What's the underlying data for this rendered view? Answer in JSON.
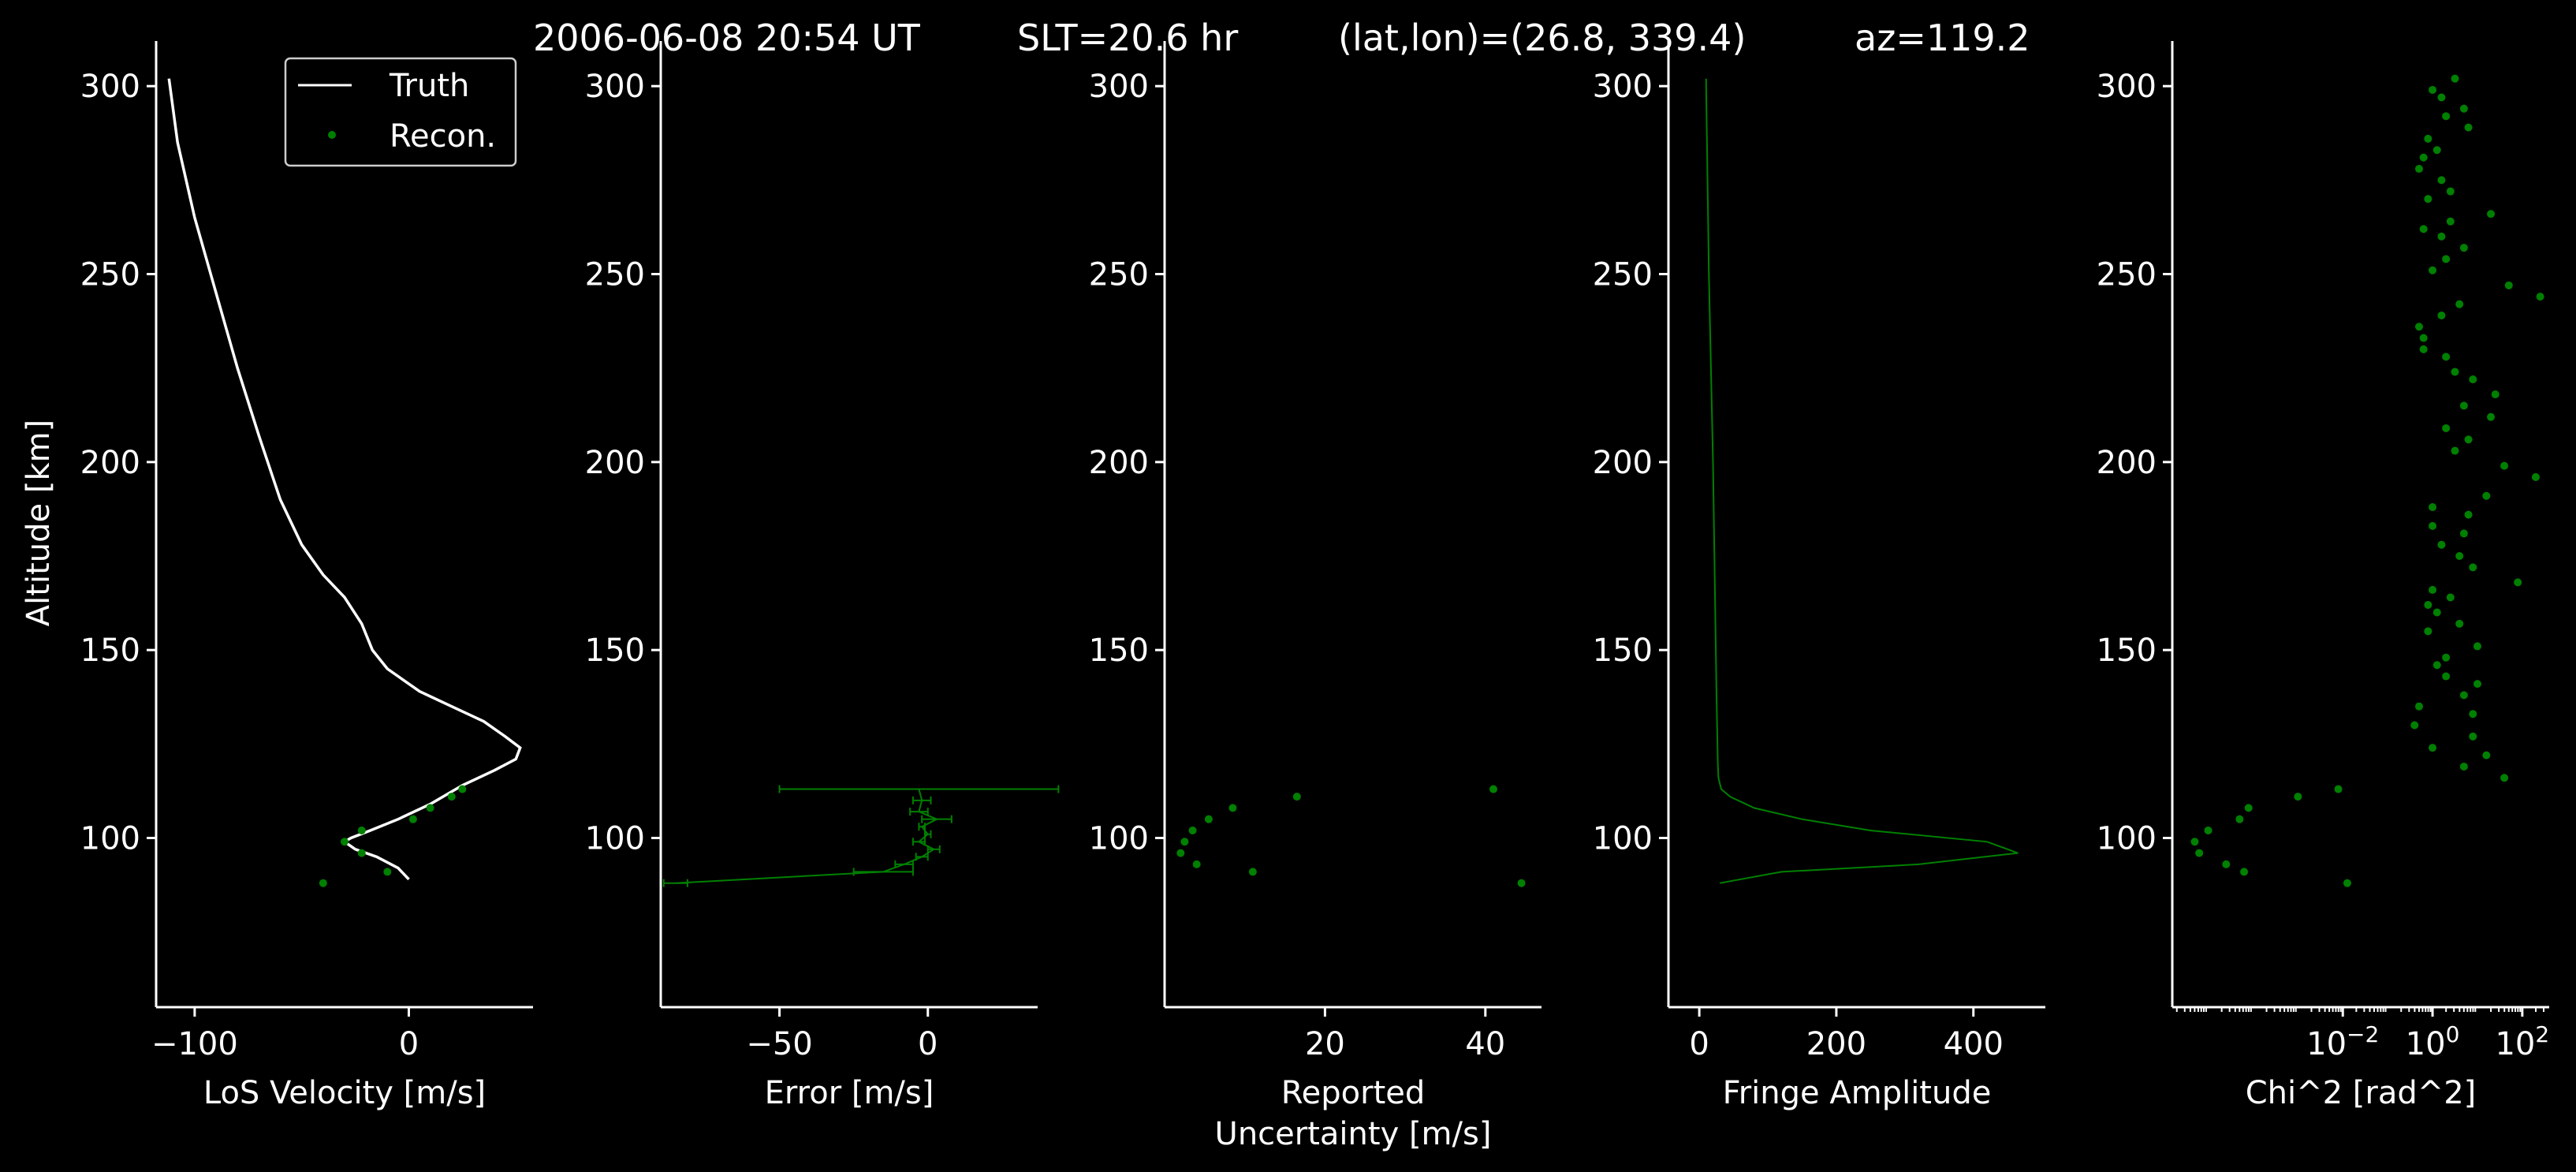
{
  "figure": {
    "title_parts": [
      "2006-06-08 20:54 UT",
      "SLT=20.6 hr",
      "(lat,lon)=(26.8, 339.4)",
      "az=119.2"
    ],
    "y_label": "Altitude [km]",
    "colors": {
      "background": "#000000",
      "axes": "#ffffff",
      "truth": "#ffffff",
      "recon": "#008000"
    }
  },
  "chart_data": [
    {
      "type": "line",
      "panel": "velocity",
      "xlabel": "LoS Velocity [m/s]",
      "ylabel": "Altitude [km]",
      "xlim": [
        -118,
        58
      ],
      "ylim": [
        55,
        312
      ],
      "x_ticks": [
        -100,
        0
      ],
      "x_tick_labels": [
        "−100",
        "0"
      ],
      "y_ticks": [
        100,
        150,
        200,
        250,
        300
      ],
      "y_tick_labels": [
        "100",
        "150",
        "200",
        "250",
        "300"
      ],
      "legend": {
        "position": "top-right",
        "entries": [
          "Truth",
          "Recon."
        ]
      },
      "series": [
        {
          "name": "Truth",
          "style": "line",
          "color": "#ffffff",
          "points": [
            [
              -112,
              302
            ],
            [
              -108,
              285
            ],
            [
              -100,
              265
            ],
            [
              -90,
              245
            ],
            [
              -80,
              225
            ],
            [
              -70,
              207
            ],
            [
              -60,
              190
            ],
            [
              -50,
              178
            ],
            [
              -40,
              170
            ],
            [
              -30,
              164
            ],
            [
              -22,
              157
            ],
            [
              -17,
              150
            ],
            [
              -10,
              145
            ],
            [
              5,
              139
            ],
            [
              20,
              135
            ],
            [
              35,
              131
            ],
            [
              45,
              127
            ],
            [
              52,
              124
            ],
            [
              50,
              121
            ],
            [
              40,
              118
            ],
            [
              25,
              114
            ],
            [
              10,
              109
            ],
            [
              -5,
              105
            ],
            [
              -18,
              102
            ],
            [
              -27,
              100
            ],
            [
              -30,
              99
            ],
            [
              -25,
              97
            ],
            [
              -15,
              95
            ],
            [
              -5,
              92
            ],
            [
              0,
              89
            ]
          ]
        },
        {
          "name": "Recon.",
          "style": "markers",
          "color": "#008000",
          "points": [
            [
              -40,
              88
            ],
            [
              -10,
              91
            ],
            [
              -22,
              96
            ],
            [
              -30,
              99
            ],
            [
              -22,
              102
            ],
            [
              2,
              105
            ],
            [
              10,
              108
            ],
            [
              20,
              111
            ],
            [
              25,
              113
            ]
          ]
        }
      ]
    },
    {
      "type": "line",
      "panel": "error",
      "xlabel": "Error [m/s]",
      "xlim": [
        -90,
        37
      ],
      "ylim": [
        55,
        312
      ],
      "x_ticks": [
        -50,
        0
      ],
      "x_tick_labels": [
        "−50",
        "0"
      ],
      "y_ticks": [
        100,
        150,
        200,
        250,
        300
      ],
      "y_tick_labels": [
        "100",
        "150",
        "200",
        "250",
        "300"
      ],
      "series": [
        {
          "name": "",
          "style": "line_errorbars",
          "color": "#008000",
          "points": [
            [
              -85,
              88,
              4
            ],
            [
              -15,
              91,
              10
            ],
            [
              -8,
              93,
              3
            ],
            [
              -2,
              95,
              2
            ],
            [
              2,
              97,
              2
            ],
            [
              -3,
              99,
              2
            ],
            [
              0,
              101,
              1
            ],
            [
              -2,
              103,
              1
            ],
            [
              3,
              105,
              5
            ],
            [
              -3,
              107,
              3
            ],
            [
              -2,
              110,
              3
            ],
            [
              -3,
              113,
              47
            ]
          ]
        }
      ]
    },
    {
      "type": "scatter",
      "panel": "uncertainty",
      "xlabel": "Reported\nUncertainty [m/s]",
      "xlim": [
        0,
        47
      ],
      "ylim": [
        55,
        312
      ],
      "x_ticks": [
        20,
        40
      ],
      "x_tick_labels": [
        "20",
        "40"
      ],
      "y_ticks": [
        100,
        150,
        200,
        250,
        300
      ],
      "y_tick_labels": [
        "100",
        "150",
        "200",
        "250",
        "300"
      ],
      "series": [
        {
          "name": "",
          "style": "markers",
          "color": "#008000",
          "points": [
            [
              44.5,
              88
            ],
            [
              11,
              91
            ],
            [
              4,
              93
            ],
            [
              2,
              96
            ],
            [
              2.5,
              99
            ],
            [
              3.5,
              102
            ],
            [
              5.5,
              105
            ],
            [
              8.5,
              108
            ],
            [
              16.5,
              111
            ],
            [
              41,
              113
            ]
          ]
        }
      ]
    },
    {
      "type": "line",
      "panel": "fringe",
      "xlabel": "Fringe Amplitude",
      "xlim": [
        -45,
        505
      ],
      "ylim": [
        55,
        312
      ],
      "x_ticks": [
        0,
        200,
        400
      ],
      "x_tick_labels": [
        "0",
        "200",
        "400"
      ],
      "y_ticks": [
        100,
        150,
        200,
        250,
        300
      ],
      "y_tick_labels": [
        "100",
        "150",
        "200",
        "250",
        "300"
      ],
      "series": [
        {
          "name": "",
          "style": "line",
          "color": "#008000",
          "points": [
            [
              30,
              88
            ],
            [
              120,
              91
            ],
            [
              320,
              93
            ],
            [
              465,
              96
            ],
            [
              420,
              99
            ],
            [
              250,
              102
            ],
            [
              150,
              105
            ],
            [
              80,
              108
            ],
            [
              45,
              111
            ],
            [
              32,
              113
            ],
            [
              28,
              116
            ],
            [
              27,
              120
            ],
            [
              25,
              140
            ],
            [
              20,
              200
            ],
            [
              14,
              250
            ],
            [
              10,
              300
            ],
            [
              10,
              302
            ]
          ]
        }
      ]
    },
    {
      "type": "scatter",
      "panel": "chi2",
      "xlabel": "Chi^2 [rad^2]",
      "x_scale": "log",
      "xlim_log10": [
        -5.8,
        2.6
      ],
      "ylim": [
        55,
        312
      ],
      "x_ticks_log10": [
        -2,
        0,
        2
      ],
      "x_tick_labels": [
        "10−2",
        "100",
        "102"
      ],
      "y_ticks": [
        100,
        150,
        200,
        250,
        300
      ],
      "y_tick_labels": [
        "100",
        "150",
        "200",
        "250",
        "300"
      ],
      "series": [
        {
          "name": "",
          "style": "markers",
          "color": "#008000",
          "points_log10": [
            [
              -1.9,
              88
            ],
            [
              -4.2,
              91
            ],
            [
              -4.6,
              93
            ],
            [
              -5.2,
              96
            ],
            [
              -5.3,
              99
            ],
            [
              -5.0,
              102
            ],
            [
              -4.3,
              105
            ],
            [
              -4.1,
              108
            ],
            [
              -3.0,
              111
            ],
            [
              -2.1,
              113
            ],
            [
              1.6,
              116
            ],
            [
              0.7,
              119
            ],
            [
              1.2,
              122
            ],
            [
              0.0,
              124
            ],
            [
              0.9,
              127
            ],
            [
              -0.4,
              130
            ],
            [
              0.9,
              133
            ],
            [
              -0.3,
              135
            ],
            [
              0.7,
              138
            ],
            [
              1.0,
              141
            ],
            [
              0.3,
              143
            ],
            [
              0.1,
              146
            ],
            [
              0.3,
              148
            ],
            [
              1.0,
              151
            ],
            [
              -0.1,
              155
            ],
            [
              0.6,
              157
            ],
            [
              0.1,
              160
            ],
            [
              -0.1,
              162
            ],
            [
              0.4,
              164
            ],
            [
              0.0,
              166
            ],
            [
              1.9,
              168
            ],
            [
              0.9,
              172
            ],
            [
              0.6,
              175
            ],
            [
              0.2,
              178
            ],
            [
              0.7,
              181
            ],
            [
              0.0,
              183
            ],
            [
              0.8,
              186
            ],
            [
              0.0,
              188
            ],
            [
              1.2,
              191
            ],
            [
              2.3,
              196
            ],
            [
              1.6,
              199
            ],
            [
              0.5,
              203
            ],
            [
              0.8,
              206
            ],
            [
              0.3,
              209
            ],
            [
              1.3,
              212
            ],
            [
              0.7,
              215
            ],
            [
              1.4,
              218
            ],
            [
              0.9,
              222
            ],
            [
              0.5,
              224
            ],
            [
              0.3,
              228
            ],
            [
              -0.2,
              230
            ],
            [
              -0.2,
              233
            ],
            [
              -0.3,
              236
            ],
            [
              0.2,
              239
            ],
            [
              0.6,
              242
            ],
            [
              2.4,
              244
            ],
            [
              1.7,
              247
            ],
            [
              0.0,
              251
            ],
            [
              0.3,
              254
            ],
            [
              0.7,
              257
            ],
            [
              0.2,
              260
            ],
            [
              -0.2,
              262
            ],
            [
              0.4,
              264
            ],
            [
              1.3,
              266
            ],
            [
              -0.1,
              270
            ],
            [
              0.4,
              272
            ],
            [
              0.2,
              275
            ],
            [
              -0.3,
              278
            ],
            [
              -0.2,
              281
            ],
            [
              0.1,
              283
            ],
            [
              -0.1,
              286
            ],
            [
              0.8,
              289
            ],
            [
              0.3,
              292
            ],
            [
              0.7,
              294
            ],
            [
              0.2,
              297
            ],
            [
              0.0,
              299
            ],
            [
              0.5,
              302
            ]
          ]
        }
      ]
    }
  ]
}
